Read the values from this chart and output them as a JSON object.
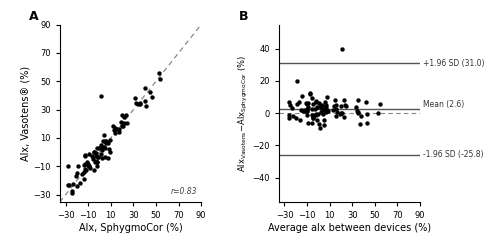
{
  "mean_line": 2.6,
  "upper_sd": 31.0,
  "lower_sd": -25.8,
  "r_value": 0.83,
  "panel_a_xlabel": "Alx, SphygmoCor (%)",
  "panel_a_ylabel": "Alx, Vasotens® (%)",
  "panel_b_xlabel": "Average alx between devices (%)",
  "panel_b_ylabel_line1": "Alx",
  "panel_b_ylabel_subscript": "Vasotens",
  "panel_b_ylabel_line2": "–Alx",
  "panel_b_ylabel_subscript2": "SphygmoCor",
  "panel_b_ylabel_unit": " (%)",
  "panel_a_xlim": [
    -35,
    90
  ],
  "panel_a_ylim": [
    -35,
    90
  ],
  "panel_b_xlim": [
    -35,
    90
  ],
  "panel_b_ylim": [
    -55,
    55
  ],
  "panel_a_xticks": [
    -30,
    -10,
    10,
    30,
    50,
    70,
    90
  ],
  "panel_a_yticks": [
    -30,
    -10,
    10,
    30,
    50,
    70,
    90
  ],
  "panel_b_xticks": [
    -30,
    -10,
    10,
    30,
    50,
    70,
    90
  ],
  "panel_b_yticks": [
    -40,
    -20,
    0,
    20,
    40
  ],
  "dot_color": "#000000",
  "dot_size": 10,
  "line_color": "#555555",
  "bg_color": "#ffffff",
  "label_fontsize": 7,
  "tick_fontsize": 6,
  "annot_fontsize": 5.5
}
